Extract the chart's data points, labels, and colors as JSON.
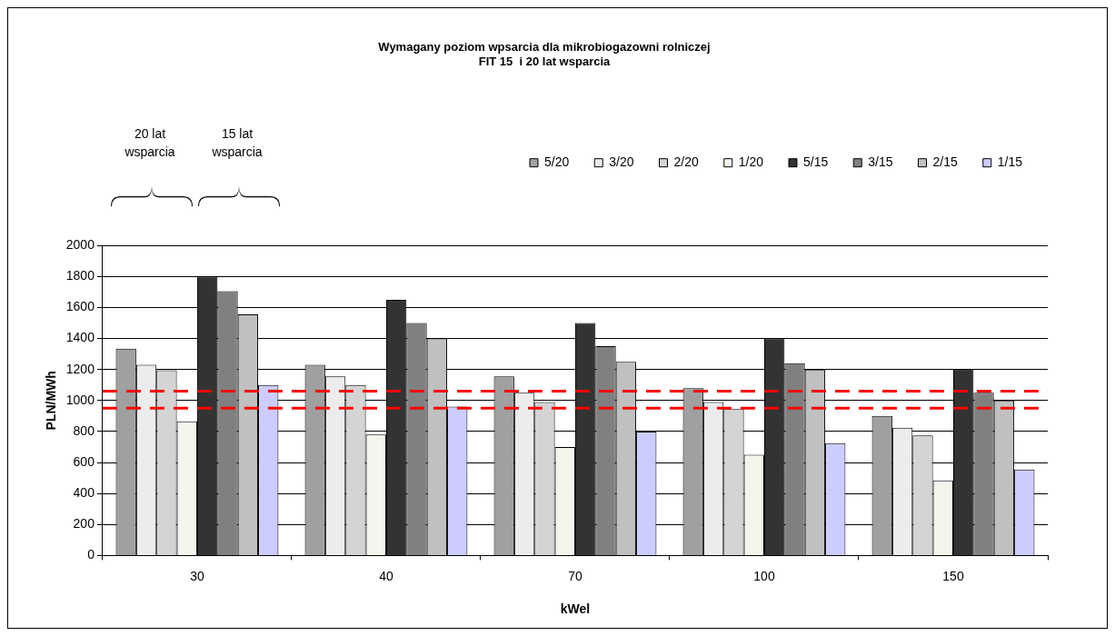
{
  "chart_data": {
    "type": "bar",
    "title": "Wymagany poziom wpsarcia dla mikrobiogazowni rolniczej",
    "subtitle": "FIT 15  i 20 lat wsparcia",
    "xlabel": "kWel",
    "ylabel": "PLN/MWh",
    "categories": [
      "30",
      "40",
      "70",
      "100",
      "150"
    ],
    "series": [
      {
        "name": "5/20",
        "color": "#a0a0a0",
        "values": [
          1335,
          1230,
          1155,
          1080,
          900
        ]
      },
      {
        "name": "3/20",
        "color": "#ececec",
        "values": [
          1230,
          1155,
          1050,
          990,
          825
        ]
      },
      {
        "name": "2/20",
        "color": "#d4d4d4",
        "values": [
          1195,
          1100,
          990,
          945,
          775
        ]
      },
      {
        "name": "1/20",
        "color": "#f5f5ee",
        "values": [
          865,
          780,
          700,
          650,
          485
        ]
      },
      {
        "name": "5/15",
        "color": "#333333",
        "values": [
          1800,
          1650,
          1500,
          1400,
          1200
        ]
      },
      {
        "name": "3/15",
        "color": "#808080",
        "values": [
          1705,
          1500,
          1350,
          1240,
          1050
        ]
      },
      {
        "name": "2/15",
        "color": "#c0c0c0",
        "values": [
          1555,
          1400,
          1250,
          1200,
          1000
        ]
      },
      {
        "name": "1/15",
        "color": "#ccccff",
        "values": [
          1100,
          960,
          800,
          725,
          555
        ]
      }
    ],
    "ylim": [
      0,
      2000
    ],
    "yticks": [
      0,
      200,
      400,
      600,
      800,
      1000,
      1200,
      1400,
      1600,
      1800,
      2000
    ],
    "grid": "y",
    "legend": "top",
    "ref_lines": [
      {
        "axis": "y",
        "value": 1060,
        "color": "#ff0000",
        "line_style": "dashed"
      },
      {
        "axis": "y",
        "value": 950,
        "color": "#ff0000",
        "line_style": "dashed"
      }
    ],
    "annotations": [
      "20 lat wsparcia",
      "15 lat wsparcia"
    ]
  }
}
